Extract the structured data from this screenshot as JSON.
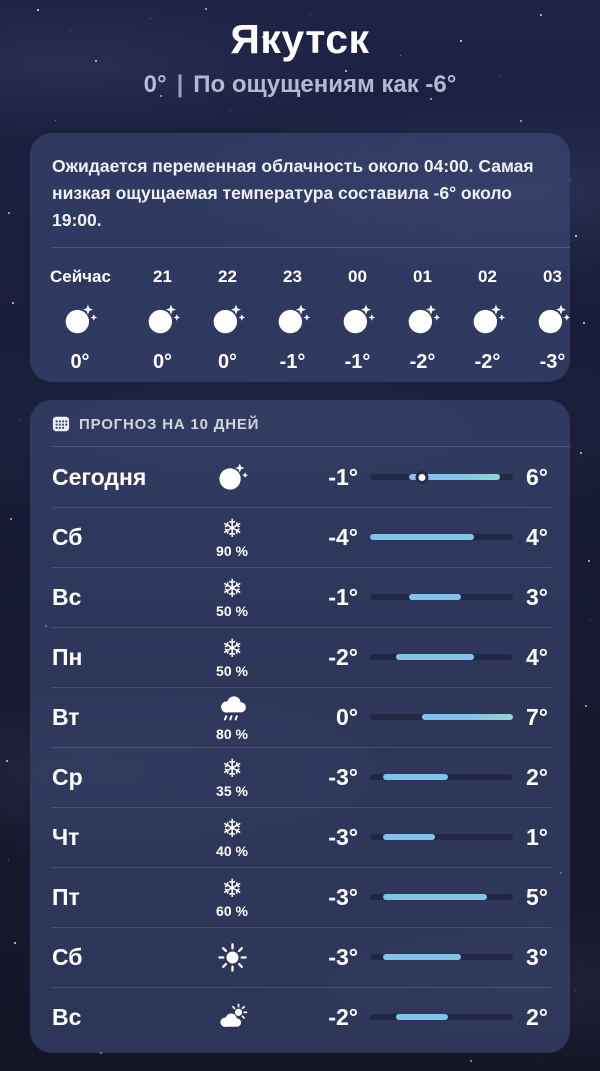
{
  "header": {
    "city": "Якутск",
    "current_temp": "0°",
    "separator": "|",
    "feels_like": "По ощущениям как -6°"
  },
  "summary_card": {
    "text": "Ожидается переменная облачность около 04:00. Самая низкая ощущаемая температура составила -6° около 19:00.",
    "hourly": [
      {
        "label": "Сейчас",
        "icon": "moon-stars",
        "temp": "0°"
      },
      {
        "label": "21",
        "icon": "moon-stars",
        "temp": "0°"
      },
      {
        "label": "22",
        "icon": "moon-stars",
        "temp": "0°"
      },
      {
        "label": "23",
        "icon": "moon-stars",
        "temp": "-1°"
      },
      {
        "label": "00",
        "icon": "moon-stars",
        "temp": "-1°"
      },
      {
        "label": "01",
        "icon": "moon-stars",
        "temp": "-2°"
      },
      {
        "label": "02",
        "icon": "moon-stars",
        "temp": "-2°"
      },
      {
        "label": "03",
        "icon": "moon-stars",
        "temp": "-3°"
      }
    ]
  },
  "forecast_card": {
    "title": "ПРОГНОЗ НА 10 ДНЕЙ",
    "scale": {
      "min": -4,
      "max": 7
    },
    "days": [
      {
        "day": "Сегодня",
        "icon": "moon-stars",
        "precip": "",
        "low": "-1°",
        "high": "6°",
        "low_val": -1,
        "high_val": 6,
        "current_val": 0
      },
      {
        "day": "Сб",
        "icon": "snow",
        "precip": "90 %",
        "low": "-4°",
        "high": "4°",
        "low_val": -4,
        "high_val": 4
      },
      {
        "day": "Вс",
        "icon": "snow",
        "precip": "50 %",
        "low": "-1°",
        "high": "3°",
        "low_val": -1,
        "high_val": 3
      },
      {
        "day": "Пн",
        "icon": "snow",
        "precip": "50 %",
        "low": "-2°",
        "high": "4°",
        "low_val": -2,
        "high_val": 4
      },
      {
        "day": "Вт",
        "icon": "rain",
        "precip": "80 %",
        "low": "0°",
        "high": "7°",
        "low_val": 0,
        "high_val": 7
      },
      {
        "day": "Ср",
        "icon": "snow",
        "precip": "35 %",
        "low": "-3°",
        "high": "2°",
        "low_val": -3,
        "high_val": 2
      },
      {
        "day": "Чт",
        "icon": "snow",
        "precip": "40 %",
        "low": "-3°",
        "high": "1°",
        "low_val": -3,
        "high_val": 1
      },
      {
        "day": "Пт",
        "icon": "snow",
        "precip": "60 %",
        "low": "-3°",
        "high": "5°",
        "low_val": -3,
        "high_val": 5
      },
      {
        "day": "Сб",
        "icon": "sun",
        "precip": "",
        "low": "-3°",
        "high": "3°",
        "low_val": -3,
        "high_val": 3
      },
      {
        "day": "Вс",
        "icon": "sun-cloud",
        "precip": "",
        "low": "-2°",
        "high": "2°",
        "low_val": -2,
        "high_val": 2
      }
    ]
  },
  "colors": {
    "bar_fill": "#7fc4e9",
    "bar_fill_warm_end": "#8fd6c9",
    "bar_track": "rgba(10,15,35,0.38)",
    "card_bg": "rgba(62,75,118,0.62)",
    "accent_text": "#b4bad4"
  }
}
